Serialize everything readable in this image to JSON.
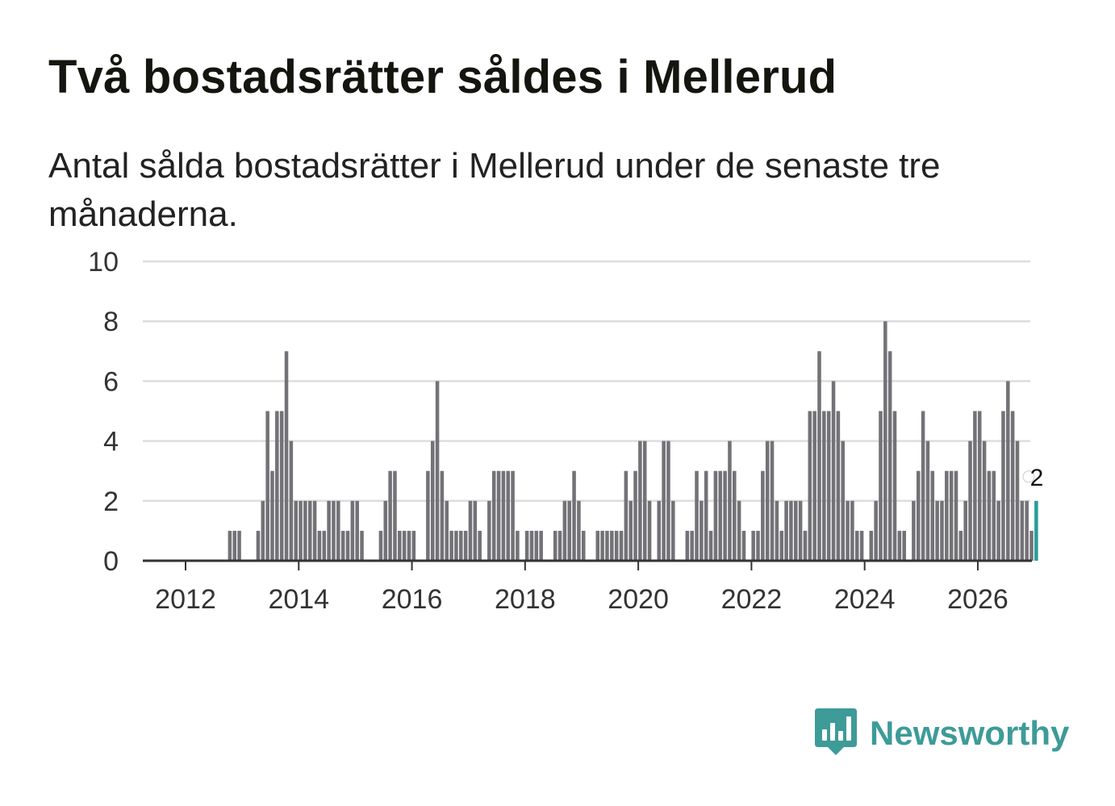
{
  "title": "Två bostadsrätter såldes i Mellerud",
  "subtitle": "Antal sålda bostadsrätter i Mellerud under de senaste tre månaderna.",
  "brand": {
    "name": "Newsworthy",
    "color": "#3d9b98",
    "icon": "newsworthy-logo-icon"
  },
  "chart_data": {
    "type": "bar",
    "title": "Två bostadsrätter såldes i Mellerud",
    "xlabel": "",
    "ylabel": "",
    "ylim": [
      0,
      10
    ],
    "y_ticks": [
      "0",
      "2",
      "4",
      "6",
      "8",
      "10"
    ],
    "x_ticks": [
      "2012",
      "2014",
      "2016",
      "2018",
      "2020",
      "2022",
      "2024",
      "2026"
    ],
    "x_tick_years": [
      2012,
      2014,
      2016,
      2018,
      2020,
      2022,
      2024,
      2026
    ],
    "start": {
      "year": 2011,
      "month": 4
    },
    "grid": true,
    "bar_color": "#737277",
    "highlight_color": "#2a9d99",
    "series": [
      {
        "name": "Antal sålda bostadsrätter",
        "values": [
          0,
          0,
          0,
          0,
          0,
          0,
          0,
          0,
          0,
          0,
          0,
          0,
          0,
          0,
          0,
          0,
          0,
          0,
          1,
          1,
          1,
          0,
          0,
          0,
          1,
          2,
          5,
          3,
          5,
          5,
          7,
          4,
          2,
          2,
          2,
          2,
          2,
          1,
          1,
          2,
          2,
          2,
          1,
          1,
          2,
          2,
          1,
          0,
          0,
          0,
          1,
          2,
          3,
          3,
          1,
          1,
          1,
          1,
          0,
          0,
          3,
          4,
          6,
          3,
          2,
          1,
          1,
          1,
          1,
          2,
          2,
          1,
          0,
          2,
          3,
          3,
          3,
          3,
          3,
          1,
          0,
          1,
          1,
          1,
          1,
          0,
          0,
          1,
          1,
          2,
          2,
          3,
          2,
          1,
          0,
          0,
          1,
          1,
          1,
          1,
          1,
          1,
          3,
          2,
          3,
          4,
          4,
          2,
          0,
          2,
          4,
          4,
          2,
          0,
          0,
          1,
          1,
          3,
          2,
          3,
          1,
          3,
          3,
          3,
          4,
          3,
          2,
          1,
          0,
          1,
          1,
          3,
          4,
          4,
          2,
          1,
          2,
          2,
          2,
          2,
          1,
          5,
          5,
          7,
          5,
          5,
          6,
          5,
          4,
          2,
          2,
          1,
          1,
          0,
          1,
          2,
          5,
          8,
          7,
          5,
          1,
          1,
          0,
          2,
          3,
          5,
          4,
          3,
          2,
          2,
          3,
          3,
          3,
          1,
          2,
          4,
          5,
          5,
          4,
          3,
          3,
          2,
          5,
          6,
          5,
          4,
          2,
          2,
          1,
          2
        ]
      }
    ],
    "highlight_label": "2"
  }
}
